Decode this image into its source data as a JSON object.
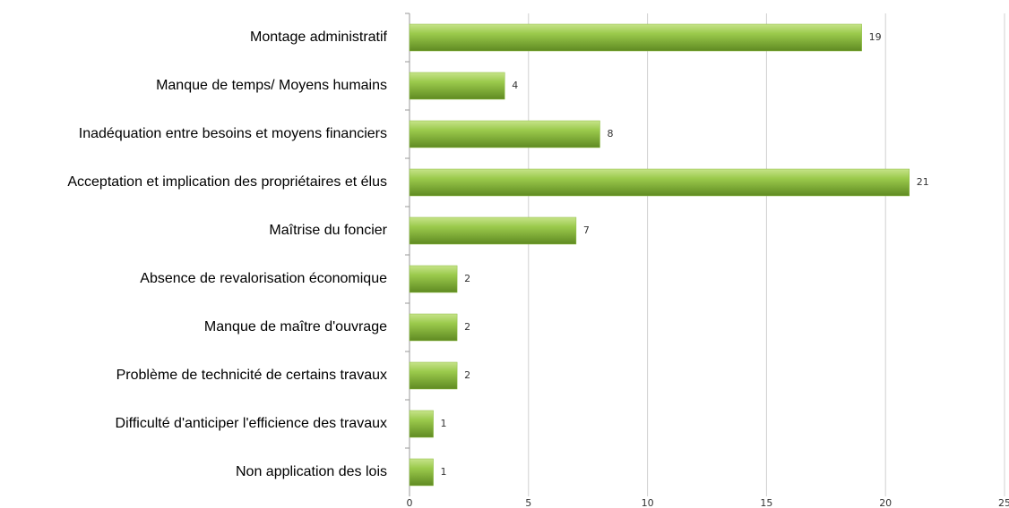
{
  "chart_data": {
    "type": "hbar",
    "categories": [
      "Montage administratif",
      "Manque de temps/ Moyens humains",
      "Inadéquation entre besoins et moyens financiers",
      "Acceptation et implication des propriétaires et élus",
      "Maîtrise du foncier",
      "Absence de revalorisation économique",
      "Manque de maître d'ouvrage",
      "Problème de technicité de certains travaux",
      "Difficulté d'anticiper l'efficience des travaux",
      "Non application des lois"
    ],
    "values": [
      19,
      4,
      8,
      21,
      7,
      2,
      2,
      2,
      1,
      1
    ],
    "color": "#8cbd3f",
    "xlim": [
      0,
      25
    ],
    "xticks": [
      0,
      5,
      10,
      15,
      20,
      25
    ],
    "grid": true
  }
}
